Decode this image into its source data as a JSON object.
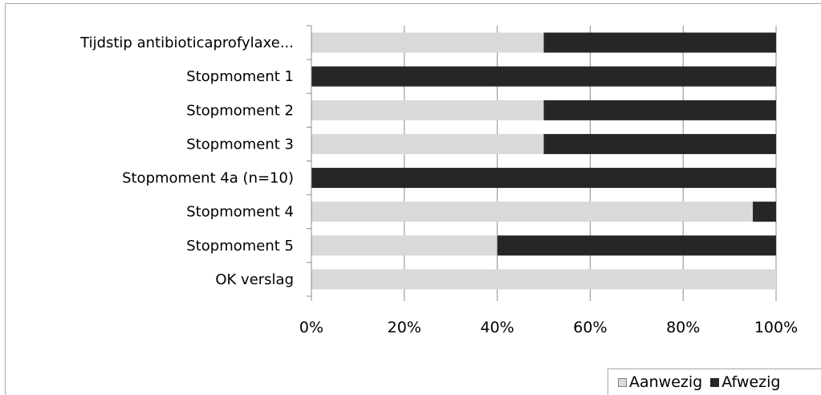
{
  "chart_data": {
    "type": "bar",
    "orientation": "horizontal",
    "stacked": "percent",
    "categories": [
      "Tijdstip antibioticaprofylaxe...",
      "Stopmoment 1",
      "Stopmoment 2",
      "Stopmoment 3",
      "Stopmoment 4a (n=10)",
      "Stopmoment 4",
      "Stopmoment 5",
      "OK verslag"
    ],
    "series": [
      {
        "name": "Aanwezig",
        "color": "#d9d9d9",
        "values": [
          50,
          0,
          50,
          50,
          0,
          95,
          40,
          100
        ]
      },
      {
        "name": "Afwezig",
        "color": "#262626",
        "values": [
          50,
          100,
          50,
          50,
          100,
          5,
          60,
          0
        ]
      }
    ],
    "xlim": [
      0,
      100
    ],
    "xticks": [
      "0%",
      "20%",
      "40%",
      "60%",
      "80%",
      "100%"
    ],
    "grid": true,
    "legend_position": "bottom-right"
  }
}
